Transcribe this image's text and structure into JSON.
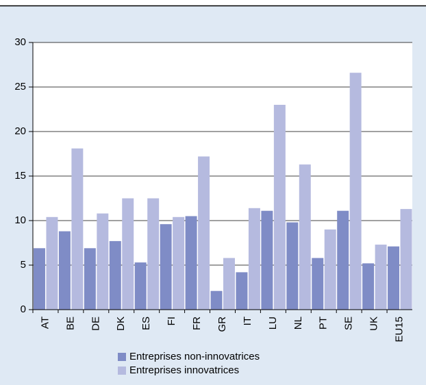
{
  "chart_data": {
    "type": "bar",
    "categories": [
      "AT",
      "BE",
      "DE",
      "DK",
      "ES",
      "FI",
      "FR",
      "GR",
      "IT",
      "LU",
      "NL",
      "PT",
      "SE",
      "UK",
      "EU15"
    ],
    "series": [
      {
        "name": "Entreprises non-innovatrices",
        "color": "#7f8cc6",
        "values": [
          6.9,
          8.8,
          6.9,
          7.7,
          5.3,
          9.6,
          10.5,
          2.1,
          4.2,
          11.1,
          9.8,
          5.8,
          11.1,
          5.2,
          7.1
        ]
      },
      {
        "name": "Entreprises innovatrices",
        "color": "#b5badf",
        "values": [
          10.4,
          18.1,
          10.8,
          12.5,
          12.5,
          10.4,
          17.2,
          5.8,
          11.4,
          23.0,
          16.3,
          9.0,
          26.6,
          7.3,
          11.3
        ]
      }
    ],
    "ylim": [
      0,
      30
    ],
    "yticks": [
      0,
      5,
      10,
      15,
      20,
      25,
      30
    ],
    "grid": true
  }
}
